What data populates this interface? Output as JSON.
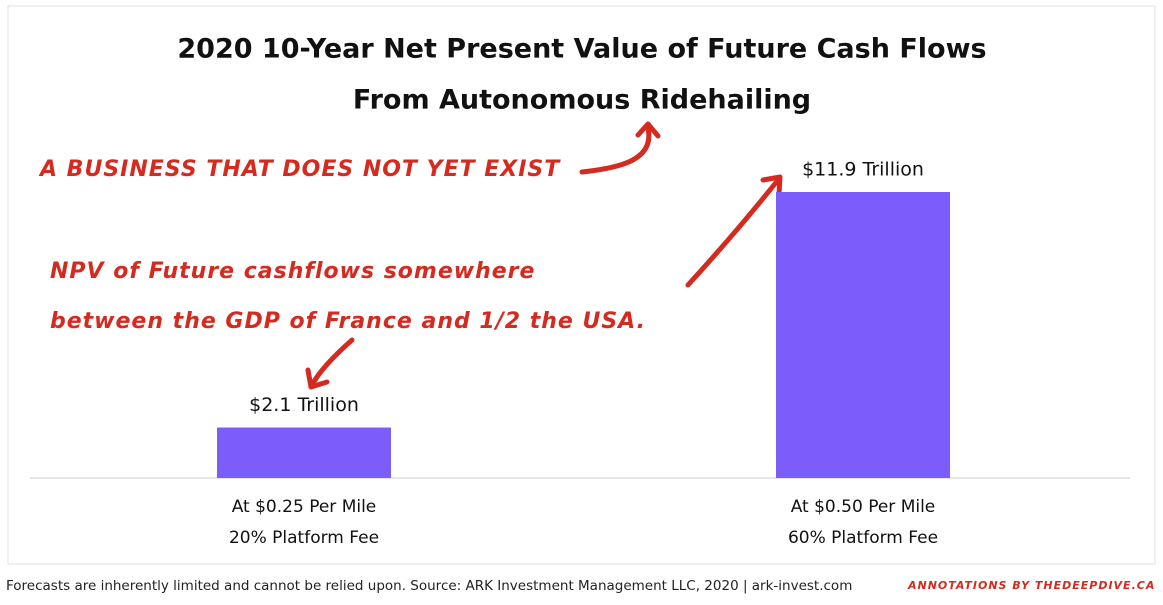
{
  "chart_data": {
    "type": "bar",
    "title": [
      "2020 10-Year Net Present Value of Future Cash Flows",
      "From Autonomous Ridehailing"
    ],
    "categories": [
      [
        "At $0.25 Per Mile",
        "20% Platform Fee"
      ],
      [
        "At $0.50 Per Mile",
        "60% Platform Fee"
      ]
    ],
    "values": [
      2.1,
      11.9
    ],
    "value_labels": [
      "$2.1 Trillion",
      "$11.9 Trillion"
    ],
    "color": "#7c5cfa",
    "annotations": [
      "A BUSINESS THAT DOES NOT YET EXIST",
      "NPV of Future cashflows somewhere",
      "between the GDP of France and 1/2 the USA."
    ],
    "footnote": "Forecasts are inherently limited and cannot be relied upon. Source: ARK Investment Management LLC, 2020  |  ark-invest.com",
    "credit": "ANNOTATIONS BY THEDEEPDIVE.CA"
  }
}
